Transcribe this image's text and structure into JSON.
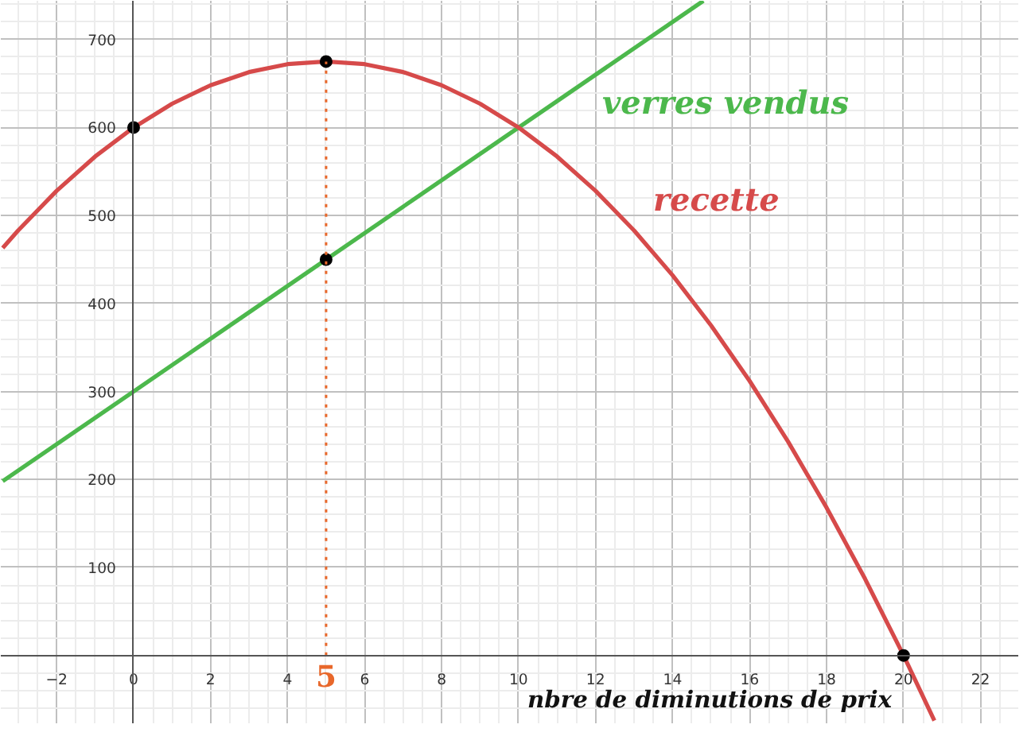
{
  "chart_data": {
    "type": "line",
    "xlabel": "nbre de diminutions de prix",
    "xlim": [
      -3.45,
      23.0
    ],
    "ylim": [
      -78,
      744
    ],
    "xticks": [
      -2,
      0,
      2,
      4,
      6,
      8,
      10,
      12,
      14,
      16,
      18,
      20,
      22
    ],
    "yticks": [
      100,
      200,
      300,
      400,
      500,
      600,
      700
    ],
    "grid": true,
    "marker": "none",
    "line_style": "solid",
    "series": [
      {
        "name": "verres  vendus",
        "color": "#4cb84c",
        "x": [
          -3.4,
          14.8
        ],
        "values": [
          198,
          744
        ]
      },
      {
        "name": "recette",
        "color": "#d64a4a",
        "x": [
          -3.4,
          -3,
          -2,
          -1,
          0,
          1,
          2,
          3,
          4,
          5,
          6,
          7,
          8,
          9,
          10,
          11,
          12,
          13,
          14,
          15,
          16,
          17,
          18,
          19,
          20,
          20.8
        ],
        "values": [
          463,
          483,
          528,
          567,
          600,
          627,
          648,
          663,
          672,
          675,
          672,
          663,
          648,
          627,
          600,
          567,
          528,
          483,
          432,
          375,
          312,
          243,
          168,
          87,
          0,
          -74
        ]
      },
      {
        "type": "scatter",
        "color": "#000000",
        "marker": "circle",
        "x": [
          0,
          5,
          5,
          20
        ],
        "values": [
          600,
          675,
          450,
          0
        ]
      }
    ],
    "ref_lines": [
      {
        "axis": "x",
        "value": 5,
        "label": "5",
        "color": "#e8672a",
        "line_style": "dotted"
      }
    ]
  }
}
